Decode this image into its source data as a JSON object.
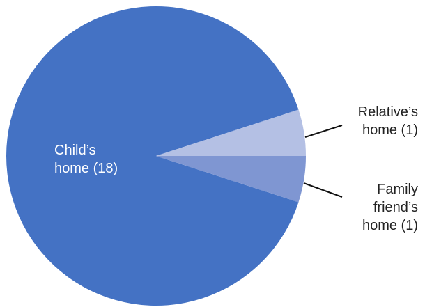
{
  "chart_data": {
    "type": "pie",
    "title": "",
    "slices": [
      {
        "label": "Child's home (18)",
        "label_lines": [
          "Child’s",
          "home (18)"
        ],
        "value": 18,
        "color": "#4472c4",
        "label_placement": "inside"
      },
      {
        "label": "Relative's home (1)",
        "label_lines": [
          "Relative’s",
          "home (1)"
        ],
        "value": 1,
        "color": "#b4c0e4",
        "label_placement": "outside-right"
      },
      {
        "label": "Family friend's home (1)",
        "label_lines": [
          "Family",
          "friend’s",
          "home (1)"
        ],
        "value": 1,
        "color": "#7f96d2",
        "label_placement": "outside-right"
      }
    ],
    "start_angle_note": "slices meet at the right of the pie; small slices straddle the 3 o'clock direction",
    "legend": "none",
    "label_color_inside": "#ffffff",
    "label_color_outside": "#222222"
  }
}
